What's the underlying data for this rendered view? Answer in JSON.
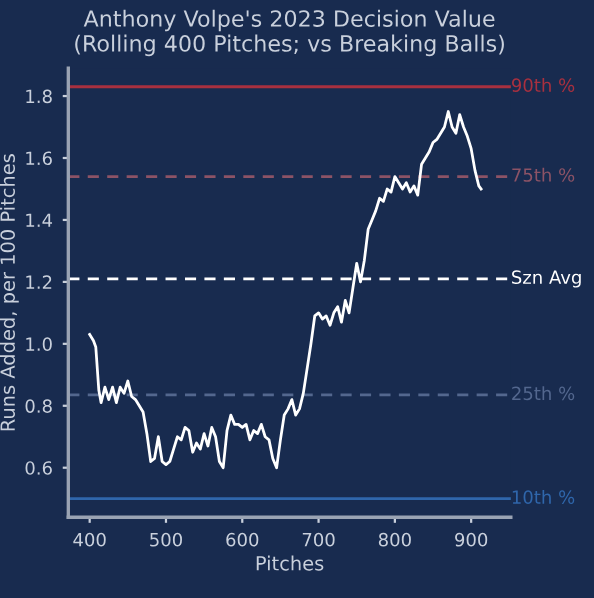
{
  "chart_data": {
    "type": "line",
    "title": "Anthony Volpe's 2023 Decision Value\n(Rolling 400 Pitches; vs Breaking Balls)",
    "xlabel": "Pitches",
    "ylabel": "Runs Added, per 100 Pitches",
    "x": [
      400,
      405,
      408,
      412,
      415,
      420,
      425,
      430,
      435,
      440,
      445,
      450,
      455,
      460,
      465,
      470,
      475,
      480,
      485,
      490,
      495,
      500,
      505,
      510,
      515,
      520,
      525,
      530,
      535,
      540,
      545,
      550,
      555,
      560,
      565,
      570,
      575,
      580,
      585,
      590,
      595,
      600,
      605,
      610,
      615,
      620,
      625,
      630,
      635,
      640,
      645,
      650,
      655,
      660,
      665,
      670,
      675,
      680,
      685,
      690,
      695,
      700,
      705,
      710,
      715,
      720,
      725,
      730,
      735,
      740,
      745,
      750,
      755,
      760,
      765,
      770,
      775,
      780,
      785,
      790,
      795,
      800,
      805,
      810,
      815,
      820,
      825,
      830,
      835,
      840,
      845,
      850,
      855,
      860,
      865,
      870,
      875,
      880,
      885,
      890,
      895,
      900,
      905,
      910,
      913
    ],
    "series": [
      {
        "color": "#ffffff",
        "values": [
          1.03,
          1.01,
          0.99,
          0.85,
          0.81,
          0.86,
          0.82,
          0.86,
          0.81,
          0.86,
          0.84,
          0.88,
          0.83,
          0.82,
          0.8,
          0.78,
          0.71,
          0.62,
          0.63,
          0.7,
          0.62,
          0.61,
          0.62,
          0.66,
          0.7,
          0.69,
          0.73,
          0.72,
          0.65,
          0.68,
          0.66,
          0.71,
          0.67,
          0.73,
          0.7,
          0.62,
          0.6,
          0.72,
          0.77,
          0.74,
          0.74,
          0.73,
          0.74,
          0.69,
          0.72,
          0.71,
          0.74,
          0.7,
          0.69,
          0.63,
          0.6,
          0.69,
          0.77,
          0.79,
          0.82,
          0.77,
          0.79,
          0.84,
          0.92,
          1.0,
          1.09,
          1.1,
          1.08,
          1.09,
          1.06,
          1.1,
          1.12,
          1.07,
          1.14,
          1.1,
          1.18,
          1.26,
          1.2,
          1.27,
          1.37,
          1.4,
          1.43,
          1.47,
          1.46,
          1.5,
          1.49,
          1.54,
          1.52,
          1.5,
          1.52,
          1.49,
          1.51,
          1.48,
          1.58,
          1.6,
          1.62,
          1.65,
          1.66,
          1.68,
          1.7,
          1.75,
          1.7,
          1.68,
          1.74,
          1.7,
          1.67,
          1.63,
          1.56,
          1.51,
          1.5
        ]
      }
    ],
    "xlim": [
      372,
      952
    ],
    "ylim": [
      0.44,
      1.89
    ],
    "xticks": [
      400,
      500,
      600,
      700,
      800,
      900
    ],
    "yticks": [
      0.6,
      0.8,
      {
        "value": 1.0,
        "label": "1.0"
      },
      1.2,
      1.4,
      1.6,
      1.8
    ],
    "ref_lines": [
      {
        "axis": "y",
        "value": 1.83,
        "label": "90th %",
        "color": "#a8303f",
        "line_style": "solid"
      },
      {
        "axis": "y",
        "value": 1.54,
        "label": "75th %",
        "color": "#8c5366",
        "line_style": "dashed"
      },
      {
        "axis": "y",
        "value": 1.21,
        "label": "Szn Avg",
        "color": "#ffffff",
        "line_style": "dashed"
      },
      {
        "axis": "y",
        "value": 0.835,
        "label": "25th %",
        "color": "#53678e",
        "line_style": "dashed"
      },
      {
        "axis": "y",
        "value": 0.5,
        "label": "10th %",
        "color": "#2f66ab",
        "line_style": "solid"
      }
    ],
    "grid": false,
    "line_style": "solid",
    "marker": "none"
  }
}
